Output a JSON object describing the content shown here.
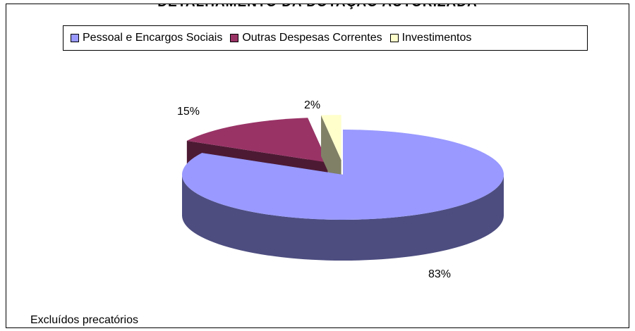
{
  "title": "DETALHAMENTO DA DOTAÇÃO AUTORIZADA",
  "footnote": "Excluídos precatórios",
  "chart_data": {
    "type": "pie",
    "variant": "3d-exploded",
    "title": "DETALHAMENTO DA DOTAÇÃO AUTORIZADA",
    "legend_position": "top",
    "series": [
      {
        "name": "Pessoal e Encargos Sociais",
        "value": 83,
        "label": "83%",
        "color": "#9999FF",
        "side_color": "#4D4D80"
      },
      {
        "name": "Outras Despesas Correntes",
        "value": 15,
        "label": "15%",
        "color": "#993366",
        "side_color": "#4D1A33"
      },
      {
        "name": "Investimentos",
        "value": 2,
        "label": "2%",
        "color": "#FFFFCC",
        "side_color": "#808066"
      }
    ]
  }
}
